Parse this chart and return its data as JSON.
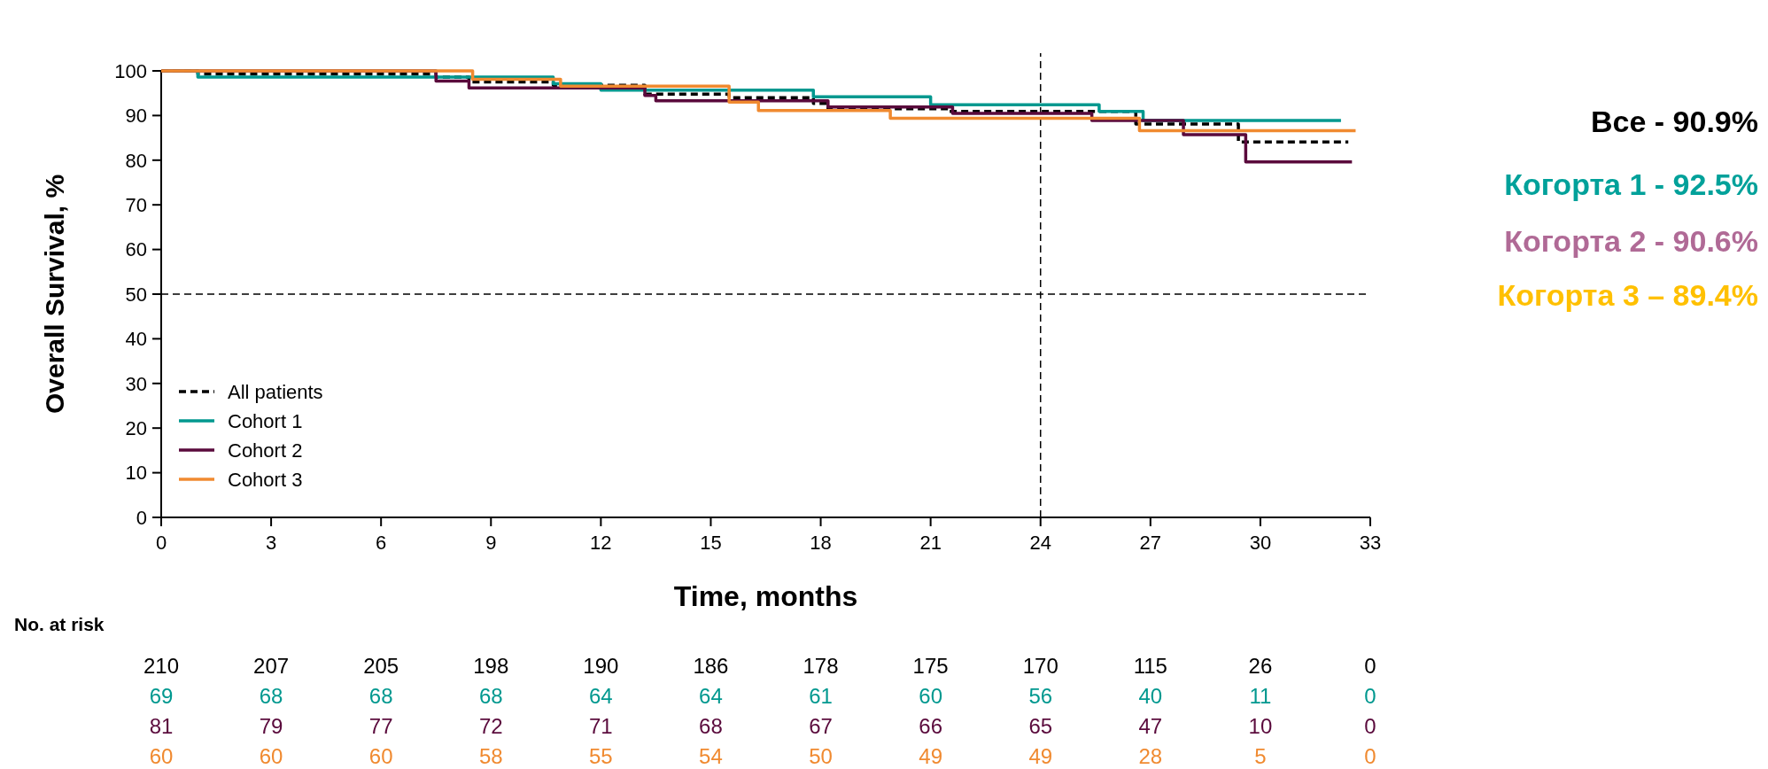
{
  "chart_data": {
    "type": "step",
    "xlabel": "Time, months",
    "ylabel": "Overall Survival, %",
    "xlim": [
      0,
      33
    ],
    "xticks": [
      0,
      3,
      6,
      9,
      12,
      15,
      18,
      21,
      24,
      27,
      30,
      33
    ],
    "ylim": [
      0,
      100
    ],
    "yticks": [
      0,
      10,
      20,
      30,
      40,
      50,
      60,
      70,
      80,
      90,
      100
    ],
    "legend": "bottom left",
    "grid": false,
    "marker": "none",
    "series": [
      {
        "name": "All patients",
        "color": "#000000",
        "line_style": "dashed",
        "x": [
          0,
          1,
          7.5,
          8.4,
          10.7,
          13.2,
          15.5,
          17.8,
          18.2,
          21.5,
          26.6,
          29.4,
          32.4
        ],
        "values": [
          100,
          99.3,
          98.6,
          97.5,
          96.8,
          94.8,
          94.0,
          92.7,
          91.5,
          90.9,
          88.1,
          84.1,
          84.1
        ]
      },
      {
        "name": "Cohort 1",
        "color": "#00988f",
        "line_style": "solid",
        "x": [
          0,
          1,
          10.7,
          12,
          17.8,
          21,
          25.6,
          26.8,
          32.2
        ],
        "values": [
          100,
          98.6,
          97.1,
          95.7,
          94.2,
          92.4,
          90.9,
          88.9,
          88.9
        ]
      },
      {
        "name": "Cohort 2",
        "color": "#5a0a3c",
        "line_style": "solid",
        "x": [
          0,
          7.5,
          8.4,
          13.2,
          13.5,
          18.2,
          21.6,
          25.4,
          27.9,
          29.6,
          32.5
        ],
        "values": [
          100,
          97.7,
          96.2,
          94.5,
          93.3,
          91.9,
          90.5,
          88.9,
          85.7,
          79.6,
          79.6
        ]
      },
      {
        "name": "Cohort 3",
        "color": "#f08a30",
        "line_style": "solid",
        "x": [
          0,
          8.5,
          10.9,
          15.5,
          16.3,
          19.9,
          26.7,
          32.6
        ],
        "values": [
          100,
          98.1,
          96.6,
          93.0,
          91.1,
          89.4,
          86.6,
          86.6
        ]
      }
    ],
    "ref_lines": [
      {
        "axis": "y",
        "value": 50,
        "line_style": "dashed",
        "color": "#000000"
      },
      {
        "axis": "x",
        "value": 24,
        "line_style": "dashed",
        "color": "#000000"
      }
    ],
    "annotations": [
      "Все - 90.9%",
      "Когорта 1 - 92.5%",
      "Когорта 2 - 90.6%",
      "Когорта 3 – 89.4%",
      "No. at risk",
      "210 207 205 198 190 186 178 175 170 115 26 0",
      "69 68 68 68 64 64 61 60 56 40 11 0",
      "81 79 77 72 71 68 67 66 65 47 10 0",
      "60 60 60 58 55 54 50 49 49 28 5 0"
    ]
  }
}
